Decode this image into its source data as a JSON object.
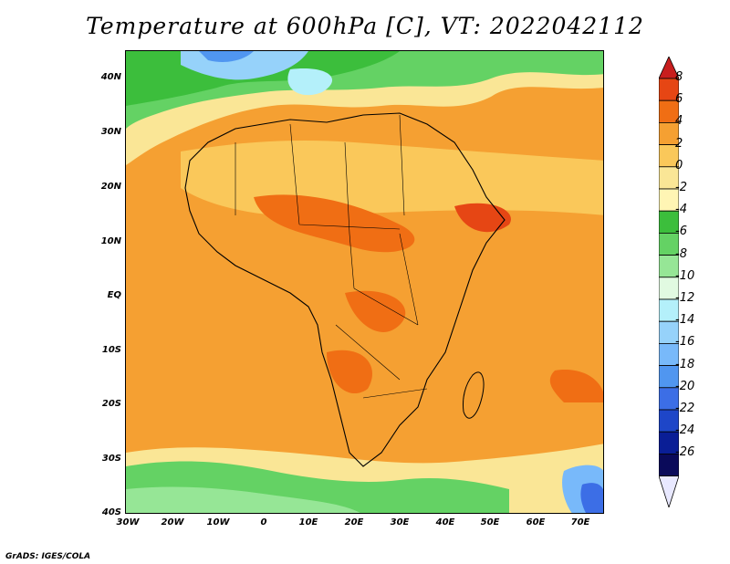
{
  "title": "Temperature at 600hPa [C], VT: 2022042112",
  "credit": "GrADS: IGES/COLA",
  "map": {
    "lat_labels": [
      "40N",
      "30N",
      "20N",
      "10N",
      "EQ",
      "10S",
      "20S",
      "30S",
      "40S"
    ],
    "lon_labels": [
      "30W",
      "20W",
      "10W",
      "0",
      "10E",
      "20E",
      "30E",
      "40E",
      "50E",
      "60E",
      "70E"
    ],
    "lon_range": [
      -30,
      75
    ],
    "lat_range": [
      -40,
      45
    ],
    "variable": "Temperature",
    "level": "600hPa",
    "units": "C",
    "valid_time": "2022042112"
  },
  "colorbar": {
    "labels": [
      "8",
      "6",
      "4",
      "2",
      "0",
      "-2",
      "-4",
      "-6",
      "-8",
      "-10",
      "-12",
      "-14",
      "-16",
      "-18",
      "-20",
      "-22",
      "-24",
      "-26"
    ],
    "colors": [
      "#c81e1e",
      "#e64614",
      "#f06e14",
      "#f5a032",
      "#fac85a",
      "#fae696",
      "#fff5b4",
      "#3cbe3c",
      "#64d264",
      "#96e696",
      "#e1fae1",
      "#b4f0fa",
      "#96d2fa",
      "#78b9fa",
      "#5096f0",
      "#3c6ee6",
      "#1e46c8",
      "#0a1e96",
      "#0a0a5a",
      "#e8e8ff"
    ]
  }
}
